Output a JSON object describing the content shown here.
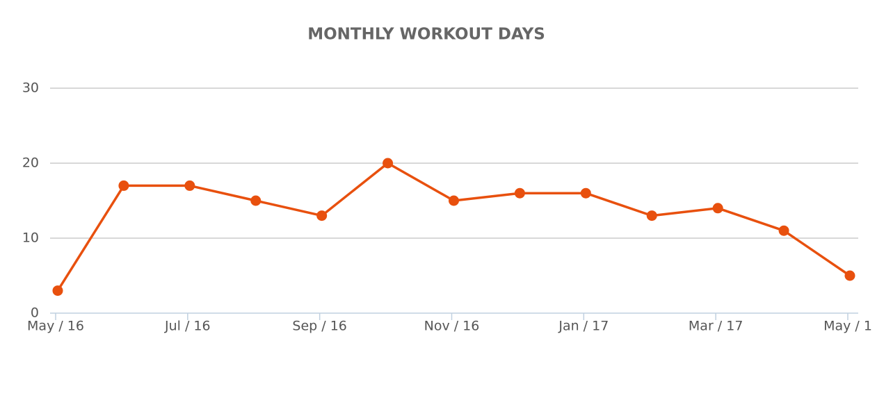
{
  "chart_data": {
    "type": "line",
    "title": "MONTHLY WORKOUT DAYS",
    "categories": [
      "May / 16",
      null,
      "Jul / 16",
      null,
      "Sep / 16",
      null,
      "Nov / 16",
      null,
      "Jan / 17",
      null,
      "Mar / 17",
      null,
      "May / 1"
    ],
    "series": [
      {
        "name": "Workout days",
        "color": "#e8500e",
        "values": [
          3,
          17,
          17,
          15,
          13,
          20,
          15,
          16,
          16,
          13,
          14,
          11,
          5
        ]
      }
    ],
    "ylim": [
      0,
      30
    ],
    "yticks": [
      0,
      10,
      20,
      30
    ],
    "grid": true
  }
}
